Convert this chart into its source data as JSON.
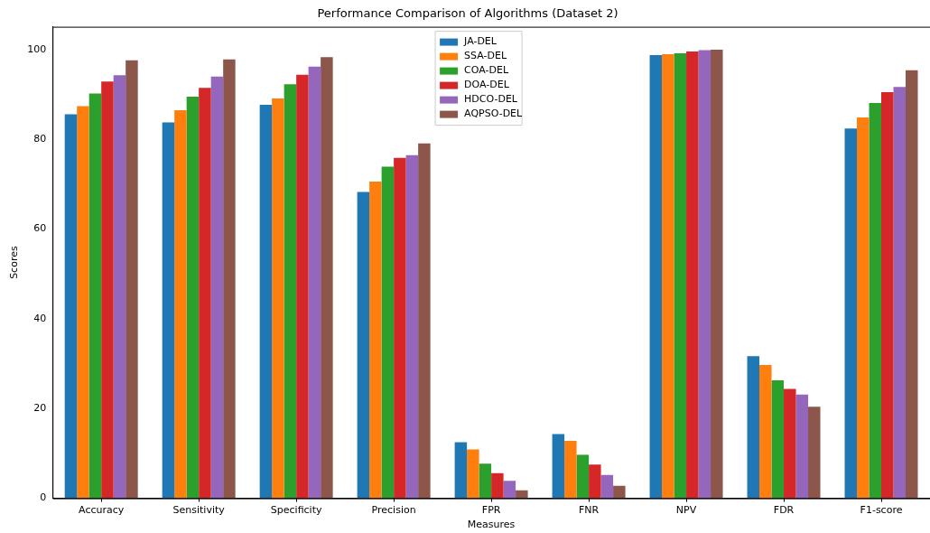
{
  "chart_data": {
    "type": "bar",
    "title": "Performance Comparison of Algorithms (Dataset 2)",
    "xlabel": "Measures",
    "ylabel": "Scores",
    "categories": [
      "Accuracy",
      "Sensitivity",
      "Specificity",
      "Precision",
      "FPR",
      "FNR",
      "NPV",
      "FDR",
      "F1-score"
    ],
    "series": [
      {
        "name": "JA-DEL",
        "color": "#1f77b4",
        "values": [
          85.6,
          83.8,
          87.7,
          68.3,
          12.5,
          14.3,
          98.8,
          31.7,
          82.4
        ]
      },
      {
        "name": "SSA-DEL",
        "color": "#ff7f0e",
        "values": [
          87.4,
          86.5,
          89.1,
          70.6,
          10.9,
          12.8,
          99.0,
          29.7,
          84.9
        ]
      },
      {
        "name": "COA-DEL",
        "color": "#2ca02c",
        "values": [
          90.2,
          89.5,
          92.3,
          73.9,
          7.7,
          9.7,
          99.2,
          26.3,
          88.1
        ]
      },
      {
        "name": "DOA-DEL",
        "color": "#d62728",
        "values": [
          92.9,
          91.5,
          94.4,
          75.9,
          5.6,
          7.5,
          99.6,
          24.4,
          90.5
        ]
      },
      {
        "name": "HDCO-DEL",
        "color": "#9467bd",
        "values": [
          94.3,
          94.0,
          96.2,
          76.5,
          3.9,
          5.2,
          99.9,
          23.1,
          91.7
        ]
      },
      {
        "name": "AQPSO-DEL",
        "color": "#8c564b",
        "values": [
          97.6,
          97.8,
          98.3,
          79.1,
          1.8,
          2.8,
          100.0,
          20.4,
          95.4
        ]
      }
    ],
    "ylim": [
      0,
      105.1
    ],
    "yticks": [
      0,
      20,
      40,
      60,
      80,
      100
    ],
    "grid": false,
    "legend": "top"
  }
}
